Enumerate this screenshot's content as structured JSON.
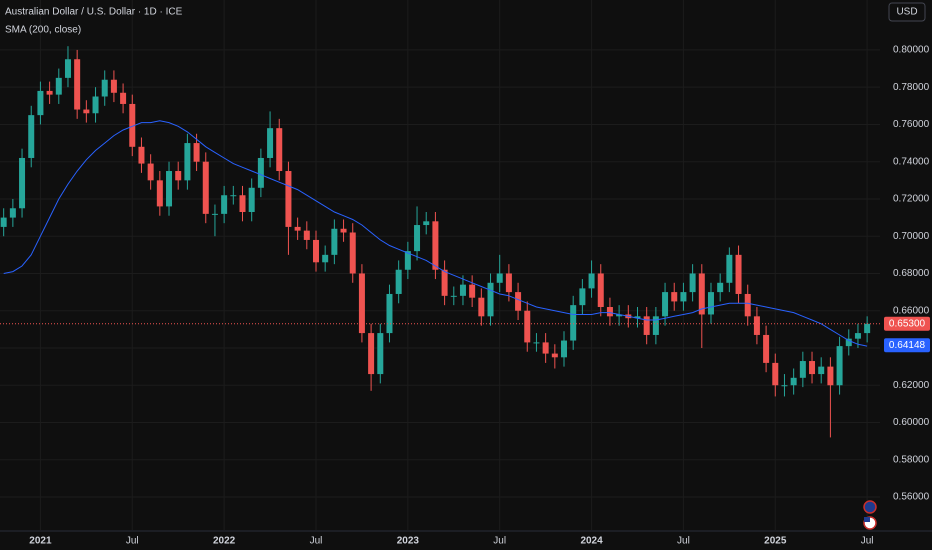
{
  "chart_data": {
    "type": "candlestick",
    "title": "Australian Dollar / U.S. Dollar · 1D · ICE",
    "currency": "USD",
    "up_color": "#26a69a",
    "down_color": "#ef5350",
    "grid": true,
    "x": [
      2020.8,
      2020.85,
      2020.9,
      2020.95,
      2021.0,
      2021.05,
      2021.1,
      2021.15,
      2021.2,
      2021.25,
      2021.3,
      2021.35,
      2021.4,
      2021.45,
      2021.5,
      2021.55,
      2021.6,
      2021.65,
      2021.7,
      2021.75,
      2021.8,
      2021.85,
      2021.9,
      2021.95,
      2022.0,
      2022.05,
      2022.1,
      2022.15,
      2022.2,
      2022.25,
      2022.3,
      2022.35,
      2022.4,
      2022.45,
      2022.5,
      2022.55,
      2022.6,
      2022.65,
      2022.7,
      2022.75,
      2022.8,
      2022.85,
      2022.9,
      2022.95,
      2023.0,
      2023.05,
      2023.1,
      2023.15,
      2023.2,
      2023.25,
      2023.3,
      2023.35,
      2023.4,
      2023.45,
      2023.5,
      2023.55,
      2023.6,
      2023.65,
      2023.7,
      2023.75,
      2023.8,
      2023.85,
      2023.9,
      2023.95,
      2024.0,
      2024.05,
      2024.1,
      2024.15,
      2024.2,
      2024.25,
      2024.3,
      2024.35,
      2024.4,
      2024.45,
      2024.5,
      2024.55,
      2024.6,
      2024.65,
      2024.7,
      2024.75,
      2024.8,
      2024.85,
      2024.9,
      2024.95,
      2025.0,
      2025.05,
      2025.1,
      2025.15,
      2025.2,
      2025.25,
      2025.3,
      2025.35,
      2025.4,
      2025.45,
      2025.5
    ],
    "open": [
      0.705,
      0.71,
      0.715,
      0.742,
      0.765,
      0.778,
      0.776,
      0.785,
      0.795,
      0.768,
      0.766,
      0.775,
      0.784,
      0.777,
      0.771,
      0.748,
      0.739,
      0.73,
      0.716,
      0.735,
      0.73,
      0.75,
      0.74,
      0.712,
      0.712,
      0.722,
      0.722,
      0.713,
      0.726,
      0.742,
      0.758,
      0.735,
      0.705,
      0.703,
      0.698,
      0.686,
      0.69,
      0.704,
      0.702,
      0.68,
      0.648,
      0.626,
      0.648,
      0.669,
      0.682,
      0.692,
      0.706,
      0.708,
      0.682,
      0.668,
      0.668,
      0.674,
      0.667,
      0.657,
      0.675,
      0.68,
      0.67,
      0.66,
      0.643,
      0.643,
      0.637,
      0.635,
      0.644,
      0.663,
      0.672,
      0.68,
      0.662,
      0.657,
      0.658,
      0.656,
      0.657,
      0.647,
      0.657,
      0.67,
      0.665,
      0.67,
      0.68,
      0.658,
      0.67,
      0.675,
      0.69,
      0.669,
      0.657,
      0.647,
      0.632,
      0.62,
      0.62,
      0.624,
      0.633,
      0.626,
      0.63,
      0.62,
      0.641,
      0.645,
      0.648
    ],
    "high": [
      0.715,
      0.72,
      0.747,
      0.77,
      0.783,
      0.783,
      0.79,
      0.802,
      0.8,
      0.773,
      0.78,
      0.789,
      0.789,
      0.782,
      0.776,
      0.753,
      0.744,
      0.735,
      0.74,
      0.74,
      0.755,
      0.755,
      0.745,
      0.717,
      0.727,
      0.727,
      0.727,
      0.731,
      0.747,
      0.767,
      0.763,
      0.74,
      0.71,
      0.708,
      0.703,
      0.695,
      0.709,
      0.709,
      0.707,
      0.685,
      0.653,
      0.653,
      0.674,
      0.687,
      0.697,
      0.716,
      0.713,
      0.713,
      0.687,
      0.673,
      0.679,
      0.679,
      0.672,
      0.68,
      0.69,
      0.685,
      0.675,
      0.665,
      0.648,
      0.648,
      0.642,
      0.649,
      0.668,
      0.677,
      0.687,
      0.685,
      0.667,
      0.663,
      0.663,
      0.662,
      0.662,
      0.662,
      0.675,
      0.675,
      0.675,
      0.685,
      0.685,
      0.675,
      0.68,
      0.694,
      0.695,
      0.674,
      0.662,
      0.652,
      0.637,
      0.626,
      0.629,
      0.638,
      0.638,
      0.635,
      0.635,
      0.646,
      0.65,
      0.653,
      0.657
    ],
    "low": [
      0.7,
      0.705,
      0.71,
      0.737,
      0.76,
      0.771,
      0.771,
      0.78,
      0.763,
      0.761,
      0.761,
      0.77,
      0.772,
      0.766,
      0.743,
      0.734,
      0.725,
      0.711,
      0.711,
      0.725,
      0.725,
      0.735,
      0.707,
      0.7,
      0.707,
      0.717,
      0.708,
      0.708,
      0.721,
      0.737,
      0.73,
      0.69,
      0.698,
      0.693,
      0.681,
      0.681,
      0.685,
      0.697,
      0.675,
      0.643,
      0.617,
      0.621,
      0.643,
      0.664,
      0.677,
      0.687,
      0.701,
      0.677,
      0.663,
      0.663,
      0.663,
      0.662,
      0.652,
      0.652,
      0.67,
      0.665,
      0.655,
      0.638,
      0.638,
      0.632,
      0.629,
      0.63,
      0.639,
      0.658,
      0.667,
      0.657,
      0.652,
      0.652,
      0.651,
      0.651,
      0.642,
      0.642,
      0.652,
      0.66,
      0.66,
      0.665,
      0.64,
      0.653,
      0.665,
      0.67,
      0.664,
      0.652,
      0.642,
      0.627,
      0.614,
      0.614,
      0.615,
      0.619,
      0.621,
      0.621,
      0.592,
      0.615,
      0.636,
      0.64,
      0.643
    ],
    "close": [
      0.71,
      0.715,
      0.742,
      0.765,
      0.778,
      0.776,
      0.785,
      0.795,
      0.768,
      0.766,
      0.775,
      0.784,
      0.777,
      0.771,
      0.748,
      0.739,
      0.73,
      0.716,
      0.735,
      0.73,
      0.75,
      0.74,
      0.712,
      0.712,
      0.722,
      0.722,
      0.713,
      0.726,
      0.742,
      0.758,
      0.735,
      0.705,
      0.703,
      0.698,
      0.686,
      0.69,
      0.704,
      0.702,
      0.68,
      0.648,
      0.626,
      0.648,
      0.669,
      0.682,
      0.692,
      0.706,
      0.708,
      0.682,
      0.668,
      0.668,
      0.674,
      0.667,
      0.657,
      0.675,
      0.68,
      0.67,
      0.66,
      0.643,
      0.643,
      0.637,
      0.635,
      0.644,
      0.663,
      0.672,
      0.68,
      0.662,
      0.657,
      0.658,
      0.656,
      0.657,
      0.647,
      0.657,
      0.67,
      0.665,
      0.67,
      0.68,
      0.658,
      0.67,
      0.675,
      0.69,
      0.669,
      0.657,
      0.647,
      0.632,
      0.62,
      0.62,
      0.624,
      0.633,
      0.626,
      0.63,
      0.62,
      0.641,
      0.645,
      0.648,
      0.653
    ],
    "sma": {
      "name": "SMA (200, close)",
      "color": "#2962ff",
      "values": [
        0.68,
        0.681,
        0.684,
        0.69,
        0.7,
        0.71,
        0.72,
        0.728,
        0.735,
        0.741,
        0.746,
        0.75,
        0.754,
        0.757,
        0.759,
        0.761,
        0.761,
        0.762,
        0.761,
        0.759,
        0.756,
        0.752,
        0.748,
        0.745,
        0.742,
        0.739,
        0.737,
        0.735,
        0.733,
        0.731,
        0.729,
        0.727,
        0.725,
        0.722,
        0.719,
        0.716,
        0.713,
        0.711,
        0.709,
        0.706,
        0.702,
        0.698,
        0.695,
        0.693,
        0.691,
        0.689,
        0.687,
        0.684,
        0.681,
        0.679,
        0.677,
        0.675,
        0.673,
        0.671,
        0.669,
        0.668,
        0.666,
        0.664,
        0.662,
        0.661,
        0.66,
        0.659,
        0.658,
        0.658,
        0.658,
        0.659,
        0.659,
        0.658,
        0.657,
        0.656,
        0.655,
        0.655,
        0.656,
        0.657,
        0.658,
        0.659,
        0.661,
        0.662,
        0.663,
        0.664,
        0.664,
        0.664,
        0.663,
        0.662,
        0.661,
        0.66,
        0.659,
        0.657,
        0.655,
        0.653,
        0.65,
        0.647,
        0.644,
        0.642,
        0.641
      ]
    },
    "last_price": {
      "value": 0.653,
      "label": "0.65300"
    },
    "sma_last": {
      "value": 0.64148,
      "label": "0.64148"
    },
    "xlim": [
      2020.78,
      2025.57
    ],
    "xticks": [
      {
        "value": 2021,
        "label": "2021"
      },
      {
        "value": 2021.5,
        "label": "Jul"
      },
      {
        "value": 2022,
        "label": "2022"
      },
      {
        "value": 2022.5,
        "label": "Jul"
      },
      {
        "value": 2023,
        "label": "2023"
      },
      {
        "value": 2023.5,
        "label": "Jul"
      },
      {
        "value": 2024,
        "label": "2024"
      },
      {
        "value": 2024.5,
        "label": "Jul"
      },
      {
        "value": 2025,
        "label": "2025"
      },
      {
        "value": 2025.5,
        "label": "Jul"
      }
    ],
    "ylim": [
      0.5423,
      0.8268
    ],
    "yticks": [
      {
        "value": 0.56,
        "label": "0.56000"
      },
      {
        "value": 0.58,
        "label": "0.58000"
      },
      {
        "value": 0.6,
        "label": "0.60000"
      },
      {
        "value": 0.62,
        "label": "0.62000"
      },
      {
        "value": 0.64,
        "label": "0.64000"
      },
      {
        "value": 0.66,
        "label": "0.66000"
      },
      {
        "value": 0.68,
        "label": "0.68000"
      },
      {
        "value": 0.7,
        "label": "0.70000"
      },
      {
        "value": 0.72,
        "label": "0.72000"
      },
      {
        "value": 0.74,
        "label": "0.74000"
      },
      {
        "value": 0.76,
        "label": "0.76000"
      },
      {
        "value": 0.78,
        "label": "0.78000"
      },
      {
        "value": 0.8,
        "label": "0.80000"
      }
    ]
  }
}
